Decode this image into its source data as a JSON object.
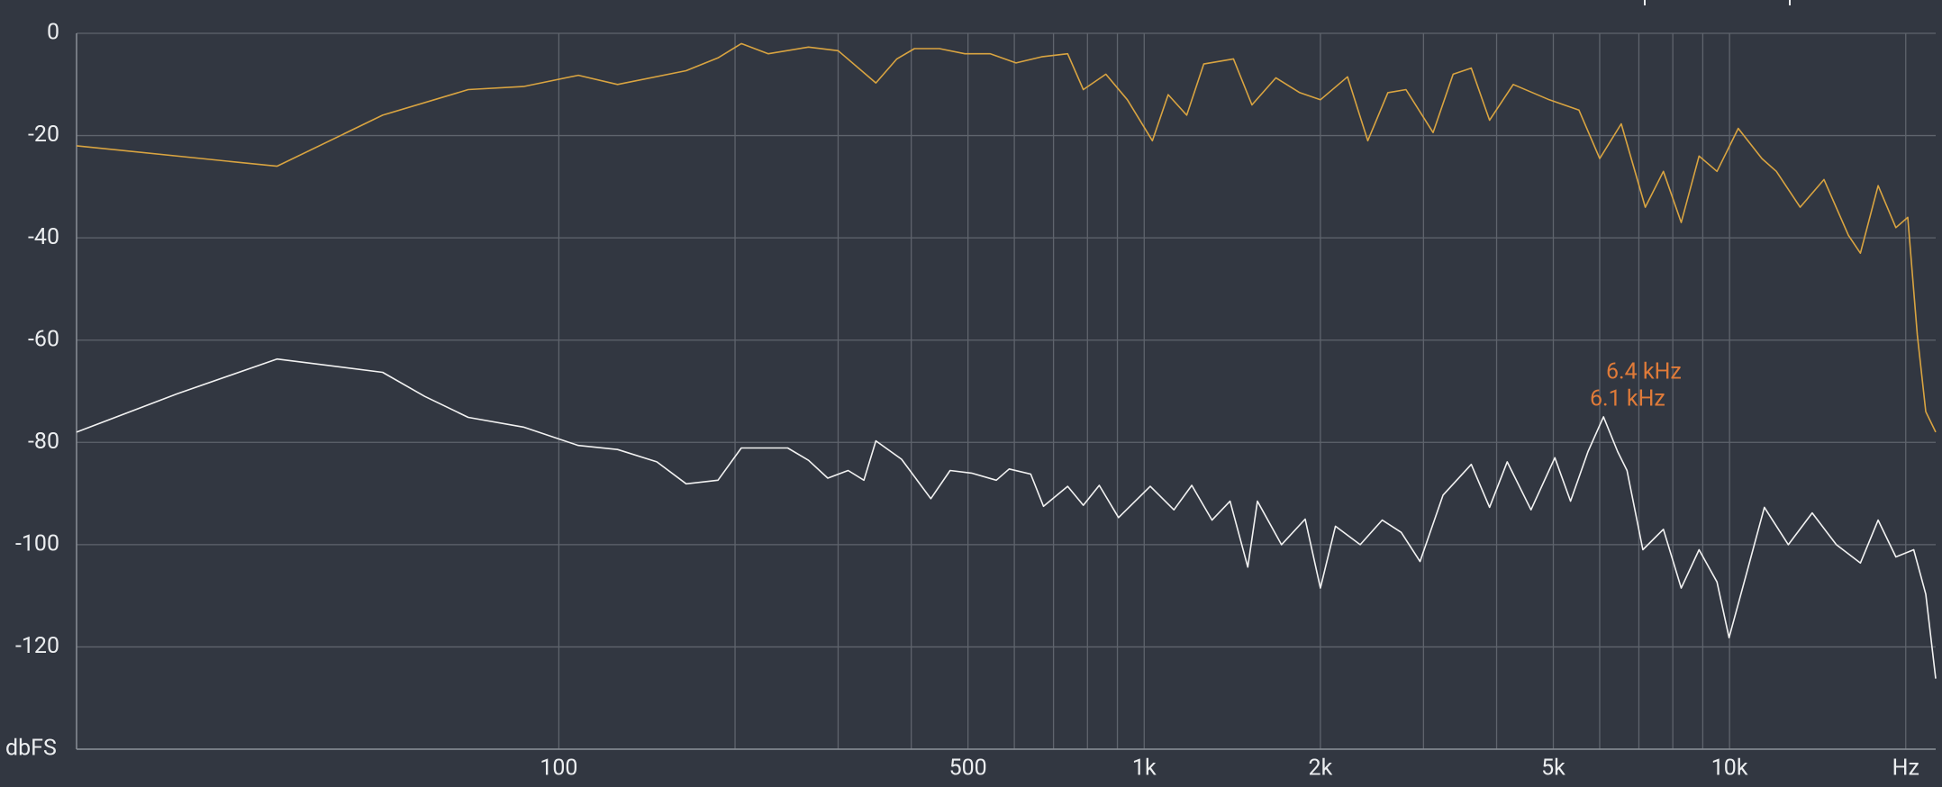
{
  "chart_data": {
    "type": "line",
    "xscale": "log",
    "grid": true,
    "xlim": [
      15,
      22500
    ],
    "ylim": [
      -140,
      0
    ],
    "xticks": [
      100,
      500,
      {
        "value": 1000,
        "label": "1k"
      },
      {
        "value": 2000,
        "label": "2k"
      },
      {
        "value": 5000,
        "label": "5k"
      },
      {
        "value": 10000,
        "label": "10k"
      },
      {
        "value": 20000,
        "label": "Hz"
      }
    ],
    "x_minor_ticks": [
      200,
      300,
      400,
      600,
      700,
      800,
      900,
      3000,
      4000,
      6000,
      7000,
      8000,
      9000
    ],
    "yticks": [
      0,
      -20,
      -40,
      -60,
      -80,
      -100,
      -120,
      {
        "value": -140,
        "label": "dbFS"
      }
    ],
    "annotations": [
      "6.4  kHz",
      "6.1  kHz"
    ],
    "series": [
      {
        "color": "#d9a441",
        "x": [
          15,
          33,
          50,
          70,
          87,
          108,
          126,
          165,
          187,
          205,
          228,
          267,
          300,
          348,
          378,
          405,
          447,
          494,
          546,
          604,
          668,
          740,
          787,
          860,
          936,
          1033,
          1099,
          1182,
          1264,
          1421,
          1528,
          1679,
          1844,
          2000,
          2225,
          2410,
          2608,
          2800,
          3115,
          3372,
          3620,
          3890,
          4270,
          4920,
          5530,
          6000,
          6530,
          7180,
          7710,
          8270,
          8870,
          9520,
          10350,
          11360,
          12020,
          13200,
          14500,
          15960,
          16730,
          17940,
          19240,
          20160,
          20930,
          21640,
          22500
        ],
        "values": [
          -22,
          -26,
          -16,
          -11,
          -10.4,
          -8.2,
          -10,
          -7.3,
          -4.8,
          -2,
          -4,
          -2.7,
          -3.4,
          -9.7,
          -5,
          -3,
          -3,
          -4,
          -4,
          -5.8,
          -4.6,
          -4,
          -11,
          -8,
          -13,
          -21,
          -12,
          -16,
          -6,
          -5,
          -14,
          -8.7,
          -11.6,
          -13,
          -8.5,
          -21,
          -11.6,
          -11,
          -19.4,
          -8,
          -6.8,
          -17,
          -10,
          -13,
          -15,
          -24.5,
          -17.7,
          -34,
          -27,
          -37,
          -24,
          -27,
          -18.6,
          -24.5,
          -27,
          -34,
          -28.6,
          -39.5,
          -43,
          -29.8,
          -38,
          -36,
          -59,
          -74,
          -78
        ]
      },
      {
        "color": "#f2f2f2",
        "x": [
          15,
          22.3,
          33,
          50,
          59,
          70,
          87,
          108,
          126,
          147,
          165,
          187,
          205,
          246,
          267,
          288,
          312,
          332,
          348,
          385,
          432,
          466,
          507,
          559,
          588,
          640,
          673,
          740,
          787,
          838,
          904,
          1024,
          1124,
          1206,
          1306,
          1402,
          1503,
          1561,
          1716,
          1884,
          2000,
          2122,
          2339,
          2550,
          2748,
          2960,
          3240,
          3620,
          3890,
          4170,
          4580,
          5030,
          5350,
          5730,
          6090,
          6440,
          6680,
          7110,
          7710,
          8270,
          8870,
          9520,
          9980,
          10710,
          11470,
          12600,
          13840,
          15220,
          16730,
          17940,
          19240,
          20640,
          21640,
          22500
        ],
        "values": [
          -78,
          -70.5,
          -63.7,
          -66.3,
          -71,
          -75.1,
          -77,
          -80.6,
          -81.4,
          -83.8,
          -88.1,
          -87.4,
          -81.1,
          -81.1,
          -83.5,
          -87,
          -85.5,
          -87.4,
          -79.7,
          -83.3,
          -91,
          -85.5,
          -86,
          -87.4,
          -85.2,
          -86.2,
          -92.5,
          -88.6,
          -92.3,
          -88.4,
          -94.7,
          -88.6,
          -93.2,
          -88.4,
          -95.2,
          -91.5,
          -104.4,
          -91.5,
          -100,
          -95,
          -108.5,
          -96.4,
          -100,
          -95.2,
          -97.6,
          -103.3,
          -90.3,
          -84.3,
          -92.7,
          -83.8,
          -93.2,
          -83,
          -91.5,
          -81.8,
          -75,
          -81.8,
          -85.5,
          -101,
          -97,
          -108.5,
          -101,
          -107.3,
          -118.2,
          -105.3,
          -92.7,
          -100,
          -93.8,
          -100,
          -103.6,
          -95.2,
          -102.4,
          -101,
          -109.7,
          -126.2
        ]
      }
    ]
  }
}
